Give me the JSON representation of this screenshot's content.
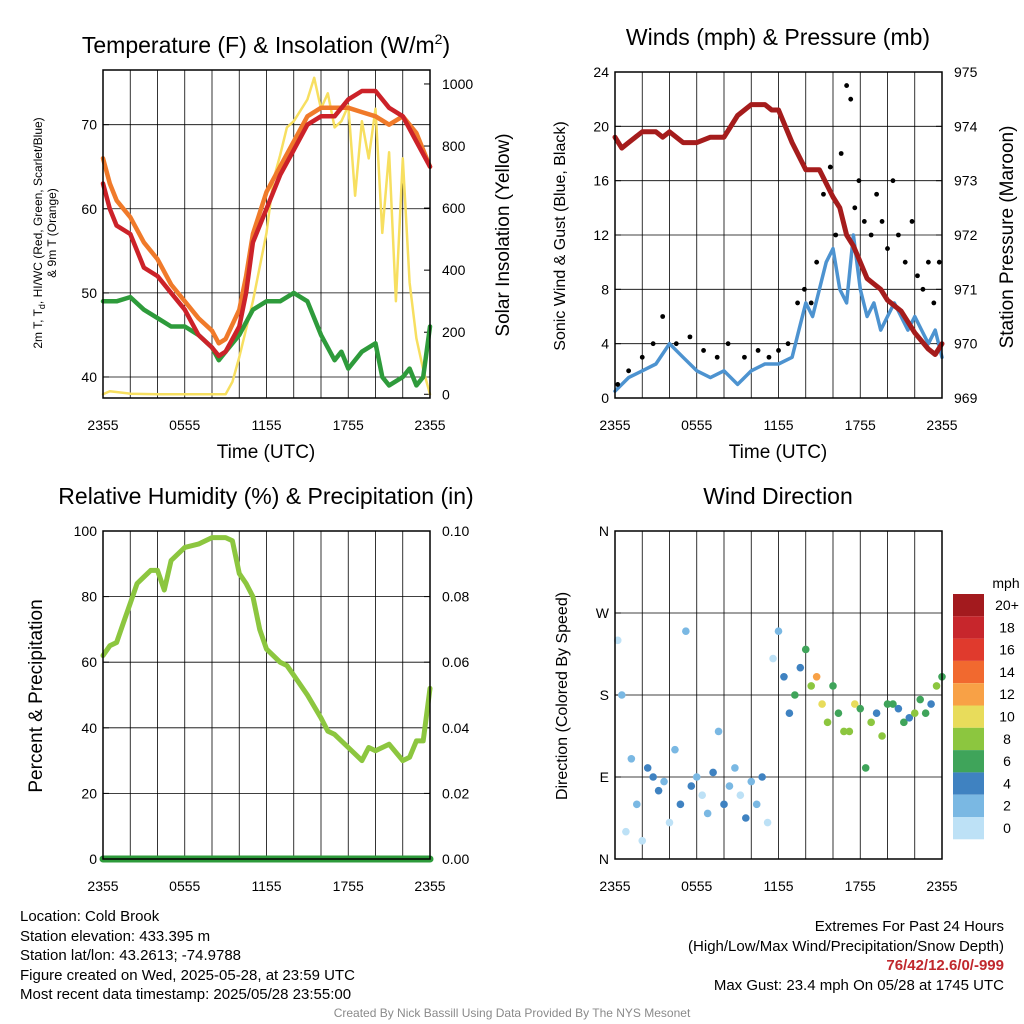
{
  "panels": {
    "temperature": {
      "title_main": "Temperature (F) & Insolation (W/m",
      "title_sup": "2",
      "title_end": ")",
      "ylabel_left_line1": "2m T, T",
      "ylabel_left_sub": "d",
      "ylabel_left_line1_end": ", HI/WC (Red, Green, Scarlet/Blue)",
      "ylabel_left_line2": "& 9m T (Orange)",
      "ylabel_right": "Solar Insolation (Yellow)",
      "xlabel": "Time (UTC)"
    },
    "winds": {
      "title": "Winds (mph) & Pressure (mb)",
      "ylabel_left": "Sonic Wind & Gust (Blue, Black)",
      "ylabel_right": "Station Pressure (Maroon)",
      "xlabel": "Time (UTC)"
    },
    "humidity": {
      "title": "Relative Humidity (%) & Precipitation (in)",
      "ylabel_left": "Percent & Precipitation"
    },
    "direction": {
      "title": "Wind Direction",
      "ylabel_left": "Direction (Colored By Speed)",
      "legend_title": "mph"
    }
  },
  "footer": {
    "left": [
      "Location: Cold Brook",
      "Station elevation: 433.395 m",
      "Station lat/lon: 43.2613; -74.9788",
      "Figure created on Wed, 2025-05-28, at 23:59 UTC",
      "Most recent data timestamp: 2025/05/28 23:55:00"
    ],
    "extremes_title": "Extremes For Past 24 Hours",
    "extremes_subtitle": "(High/Low/Max Wind/Precipitation/Snow Depth)",
    "extremes_values": "76/42/12.6/0/-999",
    "max_gust": "Max Gust: 23.4 mph On 05/28 at 1745 UTC",
    "credit": "Created By Nick Bassill Using Data Provided By The NYS Mesonet"
  },
  "chart_data": [
    {
      "type": "line",
      "x_ticks": [
        "2355",
        "0555",
        "1155",
        "1755",
        "2355"
      ],
      "xlim_hours": [
        0,
        24
      ],
      "ylim_left": [
        37.5,
        76.5
      ],
      "ylim_right": [
        -12,
        1045
      ],
      "y_ticks_left": [
        "40",
        "50",
        "60",
        "70"
      ],
      "y_ticks_right": [
        "0",
        "200",
        "400",
        "600",
        "800",
        "1000"
      ],
      "series": [
        {
          "axis": "left",
          "color": "#2e9b3b",
          "x": [
            0,
            1,
            2,
            3,
            4,
            5,
            6,
            7,
            8,
            8.5,
            9,
            10,
            11,
            12,
            13,
            14,
            15,
            16,
            17,
            17.5,
            18,
            19,
            20,
            20.5,
            21,
            22,
            22.5,
            23,
            23.5,
            24
          ],
          "y": [
            49,
            49,
            49.5,
            48,
            47,
            46,
            46,
            45,
            43.5,
            42,
            43,
            45,
            48,
            49,
            49,
            50,
            49,
            45,
            42,
            43,
            41,
            43,
            44,
            40,
            39,
            40,
            41,
            39,
            40,
            46
          ]
        },
        {
          "axis": "left",
          "color": "#f07a2a",
          "x": [
            0,
            0.5,
            1,
            2,
            3,
            4,
            5,
            6,
            7,
            8,
            8.5,
            9,
            10,
            10.5,
            11,
            12,
            13,
            14,
            15,
            16,
            17,
            18,
            19,
            20,
            21,
            22,
            23,
            24
          ],
          "y": [
            66,
            63,
            61,
            59,
            56,
            54,
            51,
            49,
            47,
            45.5,
            44,
            44.5,
            48,
            52,
            57,
            62,
            65,
            68,
            71,
            72,
            72,
            72,
            71.5,
            71,
            70,
            71,
            69,
            65
          ]
        },
        {
          "axis": "left",
          "color": "#cc2229",
          "x": [
            0,
            0.5,
            1,
            2,
            3,
            4,
            5,
            6,
            7,
            8,
            8.5,
            9,
            10,
            10.5,
            11,
            12,
            13,
            14,
            15,
            16,
            17,
            18,
            19,
            20,
            21,
            22,
            23,
            24
          ],
          "y": [
            63,
            60,
            58,
            57,
            53,
            52,
            50,
            48,
            45,
            43.5,
            42.5,
            43,
            46,
            50,
            56,
            60,
            64,
            67,
            70,
            71,
            71,
            73,
            74,
            74,
            72,
            71,
            68,
            65
          ]
        },
        {
          "axis": "right",
          "color": "#f7df60",
          "x": [
            0,
            0.5,
            2,
            4,
            6,
            8,
            9,
            9.5,
            10,
            11,
            12,
            12.5,
            13,
            13.5,
            14,
            15,
            15.5,
            16,
            16.5,
            17,
            17.5,
            18,
            18.5,
            19,
            19.5,
            20,
            20.5,
            21,
            21.5,
            22,
            22.5,
            23,
            23.5,
            24
          ],
          "y": [
            0,
            10,
            2,
            0,
            0,
            0,
            0,
            40,
            120,
            300,
            520,
            690,
            770,
            860,
            880,
            950,
            1020,
            920,
            970,
            860,
            880,
            930,
            640,
            880,
            760,
            920,
            520,
            780,
            300,
            760,
            360,
            180,
            80,
            0
          ]
        }
      ]
    },
    {
      "type": "line",
      "x_ticks": [
        "2355",
        "0555",
        "1155",
        "1755",
        "2355"
      ],
      "xlim_hours": [
        0,
        24
      ],
      "ylim_left": [
        0,
        24
      ],
      "ylim_right": [
        969,
        975
      ],
      "y_ticks_left": [
        "0",
        "4",
        "8",
        "12",
        "16",
        "20",
        "24"
      ],
      "y_ticks_right": [
        "969",
        "970",
        "971",
        "972",
        "973",
        "974",
        "975"
      ],
      "series": [
        {
          "name": "Station Pressure",
          "axis": "right",
          "color": "#a51c1c",
          "x": [
            0,
            0.5,
            1,
            1.5,
            2,
            3,
            3.5,
            4,
            5,
            6,
            7,
            8,
            9,
            10,
            11,
            11.5,
            12,
            13,
            14,
            15,
            16,
            16.5,
            17,
            17.5,
            18,
            18.5,
            19,
            19.5,
            20,
            21,
            22,
            23,
            23.5,
            24
          ],
          "y": [
            973.8,
            973.6,
            973.7,
            973.8,
            973.9,
            973.9,
            973.8,
            973.9,
            973.7,
            973.7,
            973.8,
            973.8,
            974.2,
            974.4,
            974.4,
            974.3,
            974.3,
            973.7,
            973.2,
            973.2,
            972.7,
            972.5,
            972,
            971.8,
            971.5,
            971.2,
            971.1,
            971,
            970.8,
            970.6,
            970.2,
            969.9,
            969.8,
            970
          ]
        },
        {
          "name": "Sonic Wind",
          "axis": "left",
          "color": "#4d93d0",
          "x": [
            0,
            1,
            2,
            3,
            4,
            5,
            6,
            7,
            8,
            9,
            10,
            11,
            12,
            13,
            13.5,
            14,
            14.5,
            15,
            15.5,
            16,
            16.5,
            17,
            17.5,
            18,
            18.5,
            19,
            19.5,
            20,
            20.5,
            21,
            21.5,
            22,
            22.5,
            23,
            23.5,
            24
          ],
          "y": [
            0.5,
            1.5,
            2,
            2.5,
            4,
            3,
            2,
            1.5,
            2,
            1,
            2,
            2.5,
            2.5,
            3,
            5,
            7,
            6,
            8,
            10,
            11,
            8,
            7,
            12,
            8,
            6,
            7,
            5,
            6,
            7,
            6,
            5,
            6,
            5,
            4,
            5,
            3
          ]
        }
      ],
      "gust_points": {
        "color": "#000000",
        "x": [
          0.2,
          1,
          2,
          2.8,
          3.5,
          4.5,
          5.5,
          6.5,
          7.5,
          8.3,
          9.5,
          10.5,
          11.3,
          12,
          12.7,
          13.4,
          13.9,
          14.4,
          14.8,
          15.3,
          15.8,
          16.2,
          16.6,
          17,
          17.3,
          17.6,
          17.9,
          18.3,
          18.8,
          19.2,
          19.6,
          20,
          20.4,
          20.8,
          21.3,
          21.8,
          22.2,
          22.6,
          23,
          23.4,
          23.8
        ],
        "y": [
          1,
          2,
          3,
          4,
          6,
          4,
          4.5,
          3.5,
          3,
          4,
          3,
          3.5,
          3,
          3.5,
          4,
          7,
          8,
          7,
          10,
          15,
          17,
          12,
          18,
          23,
          22,
          14,
          16,
          13,
          12,
          15,
          13,
          11,
          16,
          12,
          10,
          13,
          9,
          8,
          10,
          7,
          10
        ]
      }
    },
    {
      "type": "line",
      "x_ticks": [
        "2355",
        "0555",
        "1155",
        "1755",
        "2355"
      ],
      "xlim_hours": [
        0,
        24
      ],
      "ylim_left": [
        0,
        100
      ],
      "ylim_right": [
        0,
        0.1
      ],
      "y_ticks_left": [
        "0",
        "20",
        "40",
        "60",
        "80",
        "100"
      ],
      "y_ticks_right": [
        "0.00",
        "0.02",
        "0.04",
        "0.06",
        "0.08",
        "0.10"
      ],
      "series": [
        {
          "name": "Relative Humidity",
          "axis": "left",
          "color": "#8cc63f",
          "x": [
            0,
            0.5,
            1,
            1.5,
            2,
            2.5,
            3,
            3.5,
            4,
            4.5,
            5,
            6,
            7,
            8,
            9,
            9.5,
            10,
            10.5,
            11,
            11.5,
            12,
            13,
            13.5,
            14,
            15,
            16,
            16.5,
            17,
            18,
            19,
            19.5,
            20,
            21,
            22,
            22.5,
            23,
            23.5,
            24
          ],
          "y": [
            62,
            65,
            66,
            72,
            78,
            84,
            86,
            88,
            88,
            82,
            91,
            95,
            96,
            98,
            98,
            97,
            87,
            84,
            80,
            70,
            64,
            60,
            59,
            56,
            50,
            43,
            39,
            38,
            34,
            30,
            34,
            33,
            35,
            30,
            31,
            36,
            36,
            52
          ]
        },
        {
          "name": "Precipitation",
          "axis": "right",
          "color": "#2e9b3b",
          "x": [
            0,
            24
          ],
          "y": [
            0,
            0
          ]
        }
      ]
    },
    {
      "type": "scatter",
      "x_ticks": [
        "2355",
        "0555",
        "1155",
        "1755",
        "2355"
      ],
      "xlim_hours": [
        0,
        24
      ],
      "y_ticks": [
        "N",
        "E",
        "S",
        "W",
        "N"
      ],
      "ylim_deg": [
        0,
        360
      ],
      "legend": {
        "title": "mph",
        "labels": [
          "20+",
          "18",
          "16",
          "14",
          "12",
          "10",
          "8",
          "6",
          "4",
          "2",
          "0"
        ],
        "colors": [
          "#a31a1e",
          "#c7262c",
          "#e03a2d",
          "#f1692f",
          "#f8a146",
          "#e8dc5b",
          "#8cc63f",
          "#3fa45a",
          "#3f82c1",
          "#7ab8e3",
          "#bde1f6"
        ]
      },
      "points": {
        "x": [
          0.2,
          0.5,
          0.8,
          1.2,
          1.6,
          2,
          2.4,
          2.8,
          3.2,
          3.6,
          4,
          4.4,
          4.8,
          5.2,
          5.6,
          6,
          6.4,
          6.8,
          7.2,
          7.6,
          8,
          8.4,
          8.8,
          9.2,
          9.6,
          10,
          10.4,
          10.8,
          11.2,
          11.6,
          12,
          12.4,
          12.8,
          13.2,
          13.6,
          14,
          14.4,
          14.8,
          15.2,
          15.6,
          16,
          16.4,
          16.8,
          17.2,
          17.6,
          18,
          18.4,
          18.8,
          19.2,
          19.6,
          20,
          20.4,
          20.8,
          21.2,
          21.6,
          22,
          22.4,
          22.8,
          23.2,
          23.6,
          24
        ],
        "y": [
          240,
          180,
          30,
          110,
          60,
          20,
          100,
          90,
          75,
          85,
          40,
          120,
          60,
          250,
          80,
          90,
          70,
          50,
          95,
          140,
          60,
          80,
          100,
          70,
          45,
          85,
          60,
          90,
          40,
          220,
          250,
          200,
          160,
          180,
          210,
          230,
          190,
          200,
          170,
          150,
          190,
          160,
          140,
          140,
          170,
          165,
          100,
          150,
          160,
          135,
          170,
          170,
          165,
          150,
          155,
          160,
          175,
          160,
          170,
          190,
          200
        ],
        "speed": [
          0,
          1,
          0,
          2,
          1,
          0,
          3,
          4,
          3,
          2,
          0,
          1,
          3,
          1,
          4,
          2,
          0,
          2,
          3,
          1,
          4,
          2,
          1,
          0,
          3,
          1,
          2,
          4,
          0,
          0,
          1,
          4,
          3,
          5,
          4,
          6,
          8,
          12,
          10,
          7,
          5,
          6,
          8,
          7,
          9,
          5,
          6,
          8,
          4,
          7,
          6,
          5,
          4,
          6,
          3,
          7,
          6,
          5,
          4,
          7,
          6
        ]
      }
    }
  ]
}
